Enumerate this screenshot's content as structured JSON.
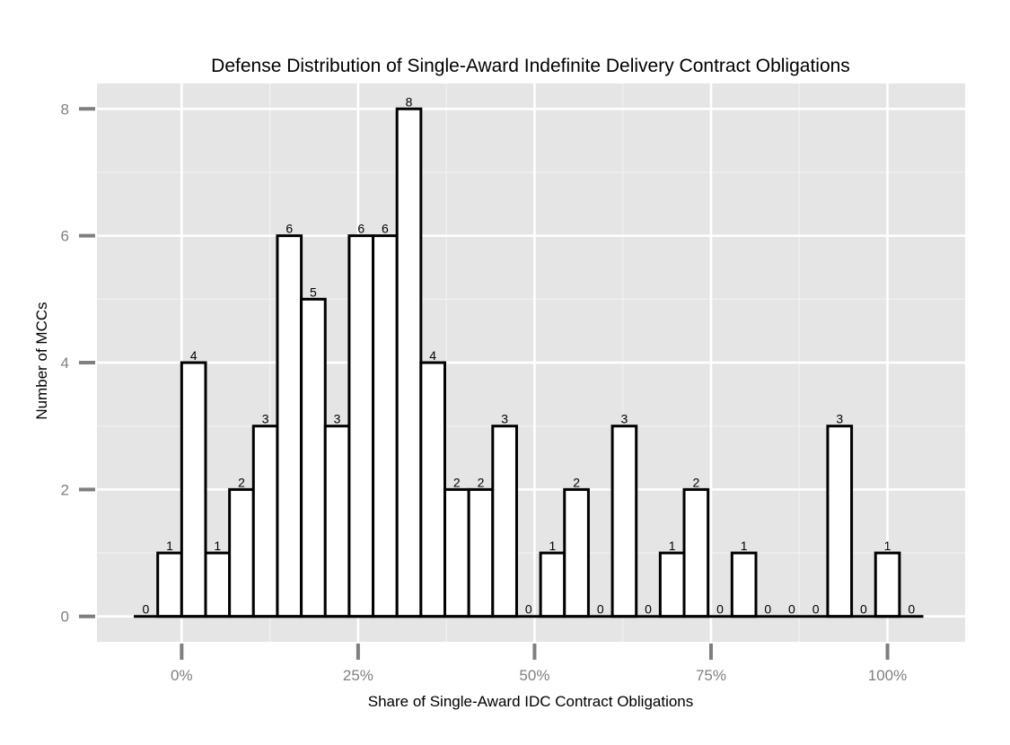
{
  "chart_data": {
    "type": "bar",
    "title": "Defense Distribution of Single-Award Indefinite Delivery Contract Obligations",
    "xlabel": "Share of Single-Award IDC Contract Obligations",
    "ylabel": "Number of MCCs",
    "bin_width": 0.0339,
    "bin_start": -0.0678,
    "values": [
      0,
      1,
      4,
      1,
      2,
      3,
      6,
      5,
      3,
      6,
      6,
      8,
      4,
      2,
      2,
      3,
      0,
      1,
      2,
      0,
      3,
      0,
      1,
      2,
      0,
      1,
      0,
      0,
      0,
      3,
      0,
      1,
      0
    ],
    "value_labels": [
      "0",
      "1",
      "4",
      "1",
      "2",
      "3",
      "6",
      "5",
      "3",
      "6",
      "6",
      "8",
      "4",
      "2",
      "2",
      "3",
      "0",
      "1",
      "2",
      "0",
      "3",
      "0",
      "1",
      "2",
      "0",
      "1",
      "0",
      "0",
      "0",
      "3",
      "0",
      "1",
      "0"
    ],
    "xlim": [
      -0.12,
      1.11
    ],
    "ylim": [
      -0.4,
      8.4
    ],
    "x_ticks": [
      0,
      0.25,
      0.5,
      0.75,
      1.0
    ],
    "x_tick_labels": [
      "0%",
      "25%",
      "50%",
      "75%",
      "100%"
    ],
    "y_ticks": [
      0,
      2,
      4,
      6,
      8
    ],
    "y_tick_labels": [
      "0",
      "2",
      "4",
      "6",
      "8"
    ],
    "grid": true,
    "colors": {
      "panel": "#e5e5e5",
      "grid_major": "#ffffff",
      "grid_minor": "#f2f2f2",
      "bar_fill": "#ffffff",
      "bar_stroke": "#000000",
      "tick": "#7f7f7f"
    }
  }
}
